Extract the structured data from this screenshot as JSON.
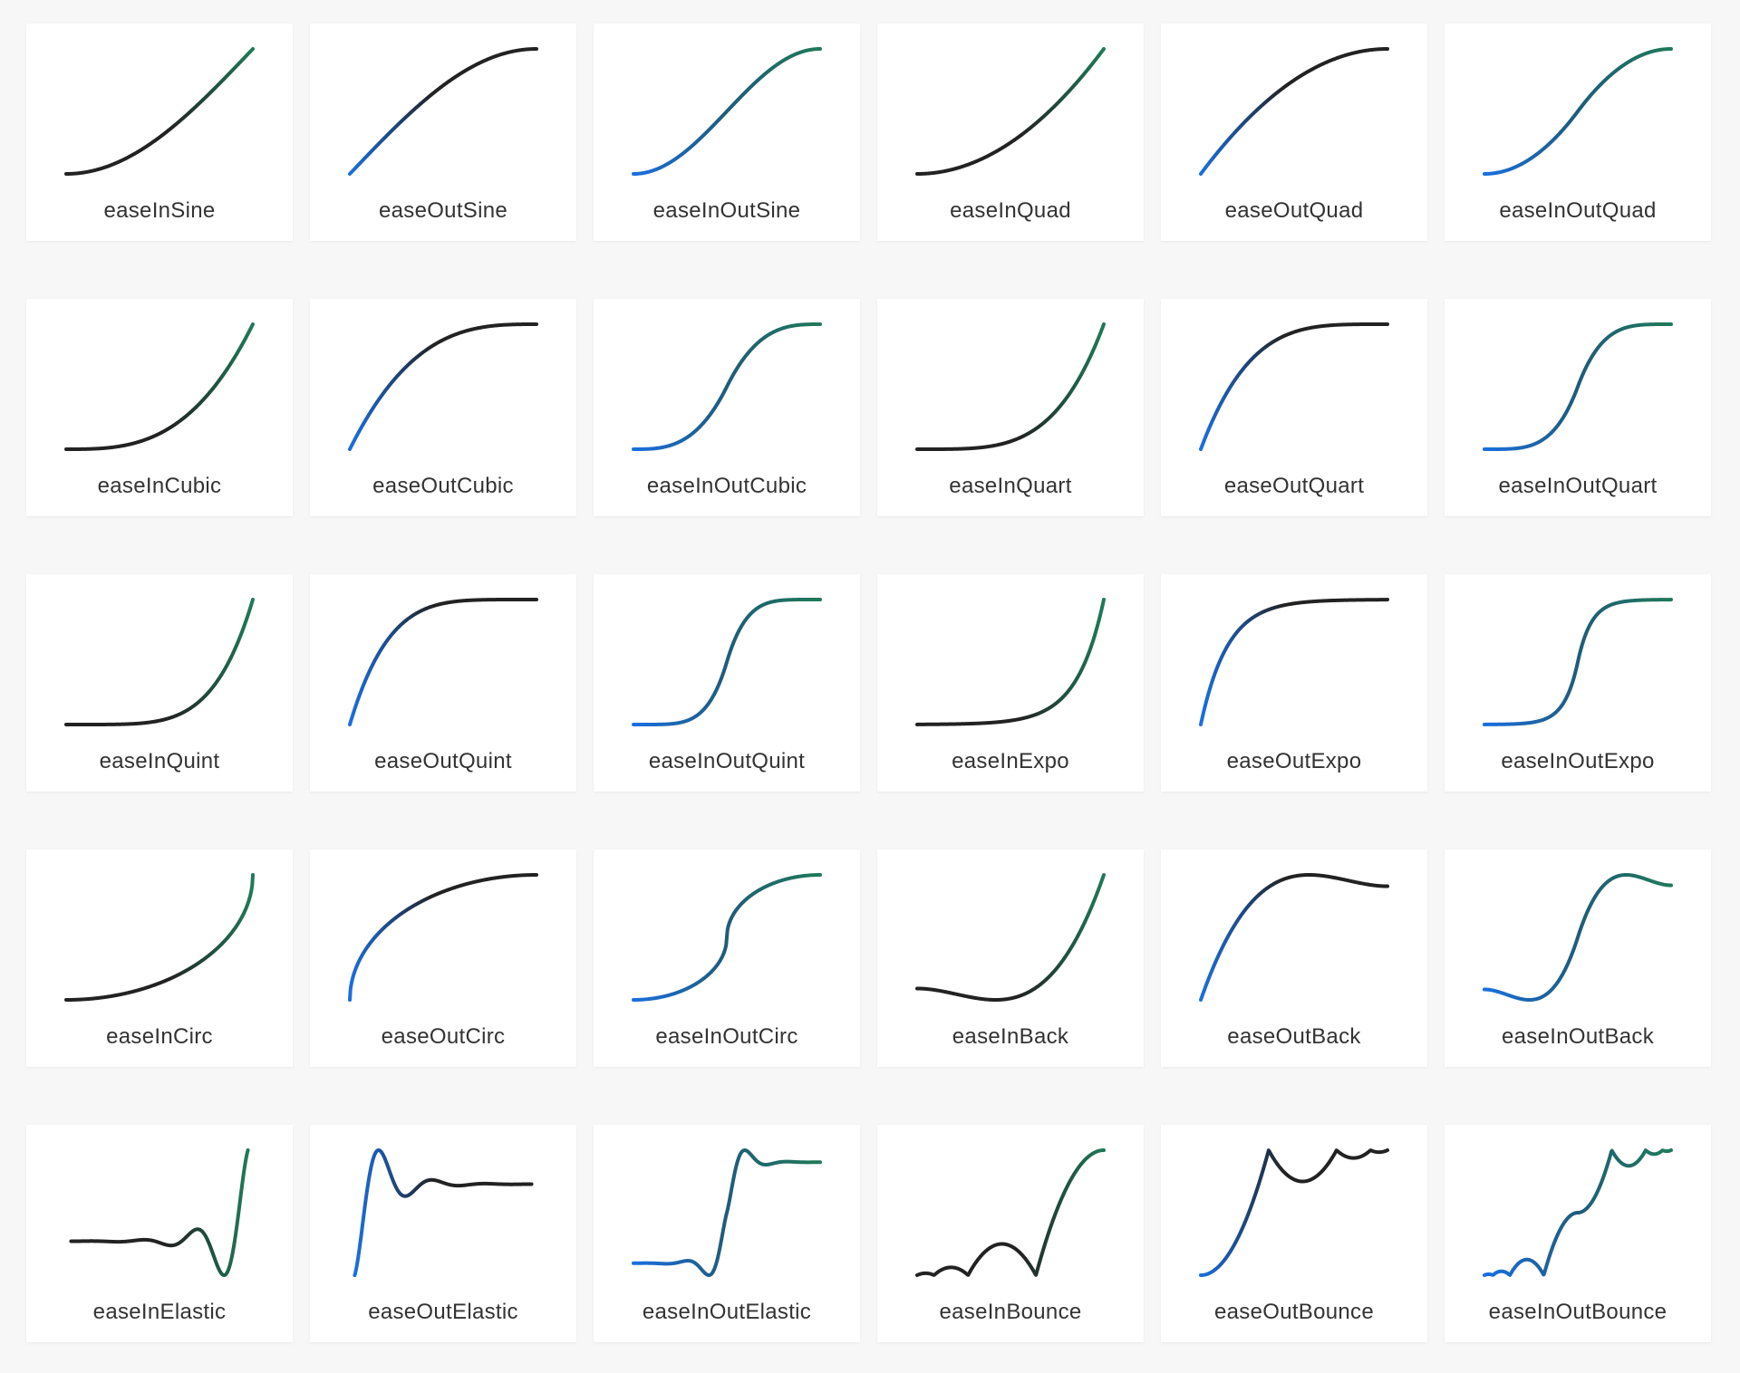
{
  "cards": [
    {
      "label": "easeInSine"
    },
    {
      "label": "easeOutSine"
    },
    {
      "label": "easeInOutSine"
    },
    {
      "label": "easeInQuad"
    },
    {
      "label": "easeOutQuad"
    },
    {
      "label": "easeInOutQuad"
    },
    {
      "label": "easeInCubic"
    },
    {
      "label": "easeOutCubic"
    },
    {
      "label": "easeInOutCubic"
    },
    {
      "label": "easeInQuart"
    },
    {
      "label": "easeOutQuart"
    },
    {
      "label": "easeInOutQuart"
    },
    {
      "label": "easeInQuint"
    },
    {
      "label": "easeOutQuint"
    },
    {
      "label": "easeInOutQuint"
    },
    {
      "label": "easeInExpo"
    },
    {
      "label": "easeOutExpo"
    },
    {
      "label": "easeInOutExpo"
    },
    {
      "label": "easeInCirc"
    },
    {
      "label": "easeOutCirc"
    },
    {
      "label": "easeInOutCirc"
    },
    {
      "label": "easeInBack"
    },
    {
      "label": "easeOutBack"
    },
    {
      "label": "easeInOutBack"
    },
    {
      "label": "easeInElastic"
    },
    {
      "label": "easeOutElastic"
    },
    {
      "label": "easeInOutElastic"
    },
    {
      "label": "easeInBounce"
    },
    {
      "label": "easeOutBounce"
    },
    {
      "label": "easeInOutBounce"
    }
  ]
}
